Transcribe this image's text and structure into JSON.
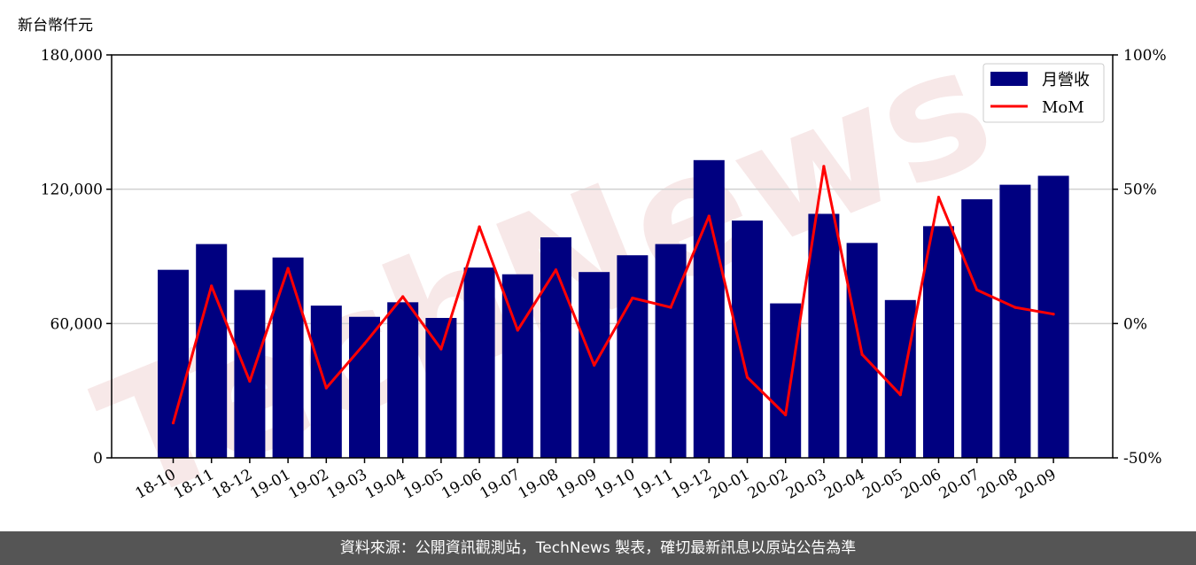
{
  "chart_data": {
    "type": "bar",
    "unit_label": "新台幣仟元",
    "categories": [
      "18-10",
      "18-11",
      "18-12",
      "19-01",
      "19-02",
      "19-03",
      "19-04",
      "19-05",
      "19-06",
      "19-07",
      "19-08",
      "19-09",
      "19-10",
      "19-11",
      "19-12",
      "20-01",
      "20-02",
      "20-03",
      "20-04",
      "20-05",
      "20-06",
      "20-07",
      "20-08",
      "20-09"
    ],
    "series": [
      {
        "name": "月營收",
        "type": "bar",
        "axis": "left",
        "color": "#000080",
        "values": [
          84000,
          95500,
          75000,
          89500,
          68000,
          63000,
          69500,
          62500,
          85000,
          82000,
          98500,
          83000,
          90500,
          95500,
          133000,
          106000,
          69000,
          109000,
          96000,
          70500,
          103500,
          115500,
          122000,
          126000
        ]
      },
      {
        "name": "MoM",
        "type": "line",
        "axis": "right",
        "color": "#ff0000",
        "values": [
          -37,
          14,
          -21.5,
          20.5,
          -24,
          -7.5,
          10,
          -9.5,
          36,
          -2.5,
          20,
          -15.5,
          9.5,
          6,
          40,
          -20,
          -34,
          58.5,
          -11.5,
          -26.5,
          47,
          12.5,
          6,
          3.5
        ]
      }
    ],
    "left_axis": {
      "ylim": [
        0,
        180000
      ],
      "ticks": [
        "0",
        "60,000",
        "120,000",
        "180,000"
      ],
      "tick_values": [
        0,
        60000,
        120000,
        180000
      ]
    },
    "right_axis": {
      "ylim": [
        -50,
        100
      ],
      "ticks": [
        "-50%",
        "0%",
        "50%",
        "100%"
      ],
      "tick_values": [
        -50,
        0,
        50,
        100
      ]
    },
    "grid": "horizontal",
    "legend_position": "top-right"
  },
  "watermark": "TechNews",
  "footer": {
    "source_text": "資料來源：公開資訊觀測站，TechNews 製表，確切最新訊息以原站公告為準"
  }
}
